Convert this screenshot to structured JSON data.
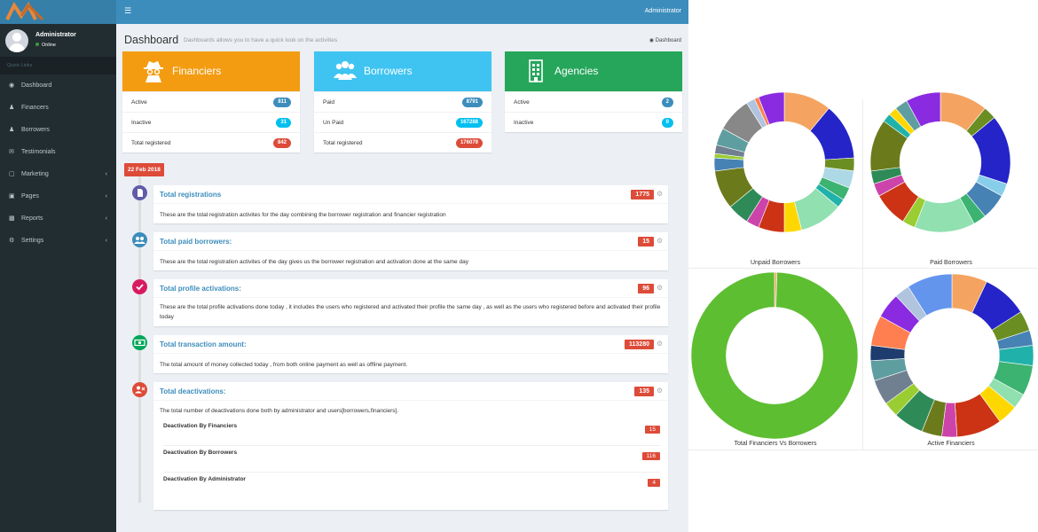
{
  "header": {
    "user": "Administrator",
    "menu_icon": "hamburger-icon"
  },
  "sidebar": {
    "user_name": "Administrator",
    "user_status": "Online",
    "section_label": "Quick Links",
    "items": [
      {
        "label": "Dashboard",
        "icon": "dashboard-icon",
        "has_submenu": false
      },
      {
        "label": "Financers",
        "icon": "user-icon",
        "has_submenu": false
      },
      {
        "label": "Borrowers",
        "icon": "users-icon",
        "has_submenu": false
      },
      {
        "label": "Testimonials",
        "icon": "comments-icon",
        "has_submenu": false
      },
      {
        "label": "Marketing",
        "icon": "envelope-icon",
        "has_submenu": true
      },
      {
        "label": "Pages",
        "icon": "files-icon",
        "has_submenu": true
      },
      {
        "label": "Reports",
        "icon": "bar-chart-icon",
        "has_submenu": true
      },
      {
        "label": "Settings",
        "icon": "cogs-icon",
        "has_submenu": true
      }
    ]
  },
  "page": {
    "title": "Dashboard",
    "subtitle": "Dashboards allows you to have a quick look on the activities",
    "breadcrumb": "Dashboard"
  },
  "cards": [
    {
      "title": "Financiers",
      "color": "#f39c12",
      "icon": "spy-icon",
      "rows": [
        {
          "label": "Active",
          "value": "811",
          "badge_color": "#3c8dbc"
        },
        {
          "label": "Inactive",
          "value": "31",
          "badge_color": "#00c0ef"
        },
        {
          "label": "Total registered",
          "value": "842",
          "badge_color": "#dd4b39"
        }
      ]
    },
    {
      "title": "Borrowers",
      "color": "#3fc4f1",
      "icon": "users-group-icon",
      "rows": [
        {
          "label": "Paid",
          "value": "8791",
          "badge_color": "#3c8dbc"
        },
        {
          "label": "Un Paid",
          "value": "167288",
          "badge_color": "#00c0ef"
        },
        {
          "label": "Total registered",
          "value": "176079",
          "badge_color": "#dd4b39"
        }
      ]
    },
    {
      "title": "Agencies",
      "color": "#26a65b",
      "icon": "building-icon",
      "rows": [
        {
          "label": "Active",
          "value": "2",
          "badge_color": "#3c8dbc"
        },
        {
          "label": "Inactive",
          "value": "0",
          "badge_color": "#00c0ef"
        }
      ]
    }
  ],
  "timeline": {
    "date": "22 Feb 2018",
    "items": [
      {
        "title": "Total registrations",
        "count": "1775",
        "icon_color": "#605ca8",
        "icon": "file-icon",
        "body": "These are the total registration activites for the day combining the borrower registration and financier registration"
      },
      {
        "title": "Total paid borrowers:",
        "count": "15",
        "icon_color": "#3c8dbc",
        "icon": "users-icon",
        "body": "These are the total registration activites of the day gives us the borrower registration and activation done at the same day"
      },
      {
        "title": "Total profile activations:",
        "count": "96",
        "icon_color": "#d81b60",
        "icon": "check-icon",
        "body": "These are the total profile activations done today , it includes the users who registered and activated their profile the same day , as well as the users who registered before and activated their profile today"
      },
      {
        "title": "Total transaction amount:",
        "count": "113280",
        "icon_color": "#00a65a",
        "icon": "money-icon",
        "body": "The total amount of money collected today , from both online payment as well as offline payment."
      },
      {
        "title": "Total deactivations:",
        "count": "135",
        "icon_color": "#dd4b39",
        "icon": "user-times-icon",
        "body": "The total number of deactivations done both by administrator and users[borrowers,financiers]."
      }
    ],
    "deactivations": [
      {
        "label": "Deactivation By Financiers",
        "value": "15"
      },
      {
        "label": "Deactivation By Borrowers",
        "value": "116"
      },
      {
        "label": "Deactivation By Administrator",
        "value": "4"
      }
    ]
  },
  "chart_data": [
    {
      "type": "pie",
      "variant": "donut",
      "title": "Unpaid Borrowers",
      "legend": "none",
      "series": [
        {
          "values": [
            11,
            13,
            3,
            4,
            3,
            2,
            10,
            4,
            6,
            3,
            5,
            9,
            3,
            1,
            2,
            4,
            8,
            2,
            1,
            6
          ]
        }
      ],
      "colors": [
        "#f4a460",
        "#2424c8",
        "#6b8e23",
        "#add8e6",
        "#3cb371",
        "#20b2aa",
        "#90e0b0",
        "#ffd700",
        "#cc3314",
        "#cc44aa",
        "#2e8b57",
        "#6b7b1b",
        "#4682b4",
        "#9acd32",
        "#708090",
        "#5f9ea0",
        "#888888",
        "#b0c4de",
        "#ff7f50",
        "#8a2be2"
      ]
    },
    {
      "type": "pie",
      "variant": "donut",
      "title": "Paid Borrowers",
      "legend": "none",
      "series": [
        {
          "values": [
            11,
            3,
            16,
            3,
            6,
            3,
            14,
            3,
            8,
            3,
            3,
            12,
            2,
            2,
            3,
            8
          ]
        }
      ],
      "colors": [
        "#f4a460",
        "#6b8e23",
        "#2424c8",
        "#87ceeb",
        "#4682b4",
        "#3cb371",
        "#90e0b0",
        "#9acd32",
        "#cc3314",
        "#cc44aa",
        "#2e8b57",
        "#6b7b1b",
        "#20b2aa",
        "#ffd700",
        "#5f9ea0",
        "#8a2be2"
      ]
    },
    {
      "type": "pie",
      "variant": "donut",
      "title": "Total Financiers Vs Borrowers",
      "legend": "none",
      "series": [
        {
          "values": [
            842,
            176079
          ]
        }
      ],
      "colors": [
        "#f4a460",
        "#5dbe32"
      ]
    },
    {
      "type": "pie",
      "variant": "donut",
      "title": "Active Financiers",
      "legend": "none",
      "series": [
        {
          "values": [
            7,
            9,
            4,
            3,
            4,
            6,
            3,
            4,
            9,
            3,
            4,
            6,
            3,
            5,
            4,
            3,
            6,
            5,
            3,
            9
          ]
        }
      ],
      "colors": [
        "#f4a460",
        "#2424c8",
        "#6b8e23",
        "#4682b4",
        "#20b2aa",
        "#3cb371",
        "#90e0b0",
        "#ffd700",
        "#cc3314",
        "#cc44aa",
        "#6b7b1b",
        "#2e8b57",
        "#9acd32",
        "#708090",
        "#5f9ea0",
        "#1e3c6e",
        "#ff7f50",
        "#8a2be2",
        "#b0c4de",
        "#6495ed"
      ]
    }
  ]
}
